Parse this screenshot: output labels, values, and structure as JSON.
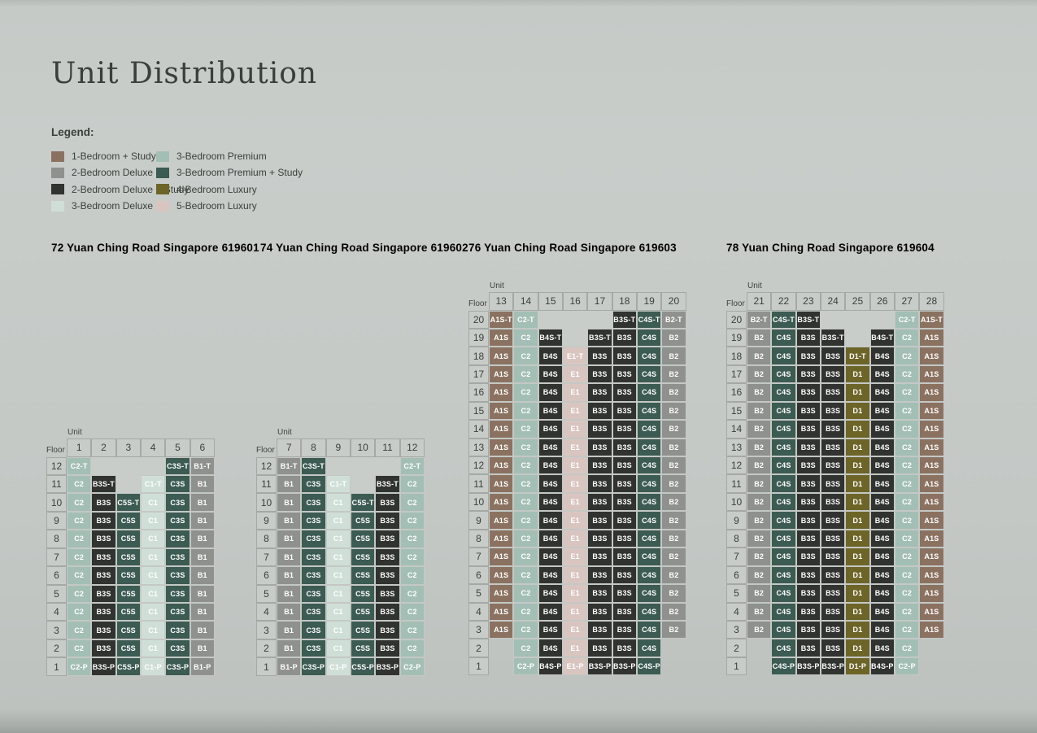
{
  "page": {
    "title": "Unit Distribution"
  },
  "chart_data": {
    "type": "table",
    "title": "Unit Distribution",
    "legend": {
      "title": "Legend:",
      "items": [
        {
          "label": "1-Bedroom + Study",
          "color": "#8b7260"
        },
        {
          "label": "2-Bedroom Deluxe",
          "color": "#8f918e"
        },
        {
          "label": "2-Bedroom Deluxe + Study",
          "color": "#313330"
        },
        {
          "label": "3-Bedroom Deluxe",
          "color": "#cfdfd8"
        },
        {
          "label": "3-Bedroom Premium",
          "color": "#a3bfb5"
        },
        {
          "label": "3-Bedroom Premium + Study",
          "color": "#3c5b52"
        },
        {
          "label": "4-Bedroom Luxury",
          "color": "#6d6428"
        },
        {
          "label": "5-Bedroom Luxury",
          "color": "#d9c5c0"
        }
      ]
    },
    "axis": {
      "unit": "Unit",
      "floor": "Floor"
    },
    "unit_colors": {
      "A1S": "#8b7260",
      "B1": "#8f918e",
      "B2": "#8f918e",
      "B3S": "#313330",
      "B4S": "#313330",
      "C1": "#cfdfd8",
      "C2": "#a3bfb5",
      "C3S": "#3c5b52",
      "C4S": "#3c5b52",
      "C5S": "#3c5b52",
      "D1": "#6d6428",
      "E1": "#d9c5c0"
    },
    "towers": [
      {
        "title": "72 Yuan Ching Road Singapore 619601",
        "units": [
          "1",
          "2",
          "3",
          "4",
          "5",
          "6"
        ],
        "floors": [
          "12",
          "11",
          "10",
          "9",
          "8",
          "7",
          "6",
          "5",
          "4",
          "3",
          "2",
          "1"
        ],
        "rows": [
          [
            "C2-T",
            "",
            "",
            "",
            "C3S-T",
            "B1-T"
          ],
          [
            "C2",
            "B3S-T",
            "",
            "C1-T",
            "C3S",
            "B1"
          ],
          [
            "C2",
            "B3S",
            "C5S-T",
            "C1",
            "C3S",
            "B1"
          ],
          [
            "C2",
            "B3S",
            "C5S",
            "C1",
            "C3S",
            "B1"
          ],
          [
            "C2",
            "B3S",
            "C5S",
            "C1",
            "C3S",
            "B1"
          ],
          [
            "C2",
            "B3S",
            "C5S",
            "C1",
            "C3S",
            "B1"
          ],
          [
            "C2",
            "B3S",
            "C5S",
            "C1",
            "C3S",
            "B1"
          ],
          [
            "C2",
            "B3S",
            "C5S",
            "C1",
            "C3S",
            "B1"
          ],
          [
            "C2",
            "B3S",
            "C5S",
            "C1",
            "C3S",
            "B1"
          ],
          [
            "C2",
            "B3S",
            "C5S",
            "C1",
            "C3S",
            "B1"
          ],
          [
            "C2",
            "B3S",
            "C5S",
            "C1",
            "C3S",
            "B1"
          ],
          [
            "C2-P",
            "B3S-P",
            "C5S-P",
            "C1-P",
            "C3S-P",
            "B1-P"
          ]
        ]
      },
      {
        "title": "74 Yuan Ching Road Singapore 619602",
        "units": [
          "7",
          "8",
          "9",
          "10",
          "11",
          "12"
        ],
        "floors": [
          "12",
          "11",
          "10",
          "9",
          "8",
          "7",
          "6",
          "5",
          "4",
          "3",
          "2",
          "1"
        ],
        "rows": [
          [
            "B1-T",
            "C3S-T",
            "",
            "",
            "",
            "C2-T"
          ],
          [
            "B1",
            "C3S",
            "C1-T",
            "",
            "B3S-T",
            "C2"
          ],
          [
            "B1",
            "C3S",
            "C1",
            "C5S-T",
            "B3S",
            "C2"
          ],
          [
            "B1",
            "C3S",
            "C1",
            "C5S",
            "B3S",
            "C2"
          ],
          [
            "B1",
            "C3S",
            "C1",
            "C5S",
            "B3S",
            "C2"
          ],
          [
            "B1",
            "C3S",
            "C1",
            "C5S",
            "B3S",
            "C2"
          ],
          [
            "B1",
            "C3S",
            "C1",
            "C5S",
            "B3S",
            "C2"
          ],
          [
            "B1",
            "C3S",
            "C1",
            "C5S",
            "B3S",
            "C2"
          ],
          [
            "B1",
            "C3S",
            "C1",
            "C5S",
            "B3S",
            "C2"
          ],
          [
            "B1",
            "C3S",
            "C1",
            "C5S",
            "B3S",
            "C2"
          ],
          [
            "B1",
            "C3S",
            "C1",
            "C5S",
            "B3S",
            "C2"
          ],
          [
            "B1-P",
            "C3S-P",
            "C1-P",
            "C5S-P",
            "B3S-P",
            "C2-P"
          ]
        ]
      },
      {
        "title": "76 Yuan Ching Road Singapore 619603",
        "units": [
          "13",
          "14",
          "15",
          "16",
          "17",
          "18",
          "19",
          "20"
        ],
        "floors": [
          "20",
          "19",
          "18",
          "17",
          "16",
          "15",
          "14",
          "13",
          "12",
          "11",
          "10",
          "9",
          "8",
          "7",
          "6",
          "5",
          "4",
          "3",
          "2",
          "1"
        ],
        "rows": [
          [
            "A1S-T",
            "C2-T",
            "",
            "",
            "",
            "B3S-T",
            "C4S-T",
            "B2-T"
          ],
          [
            "A1S",
            "C2",
            "B4S-T",
            "",
            "B3S-T",
            "B3S",
            "C4S",
            "B2"
          ],
          [
            "A1S",
            "C2",
            "B4S",
            "E1-T",
            "B3S",
            "B3S",
            "C4S",
            "B2"
          ],
          [
            "A1S",
            "C2",
            "B4S",
            "E1",
            "B3S",
            "B3S",
            "C4S",
            "B2"
          ],
          [
            "A1S",
            "C2",
            "B4S",
            "E1",
            "B3S",
            "B3S",
            "C4S",
            "B2"
          ],
          [
            "A1S",
            "C2",
            "B4S",
            "E1",
            "B3S",
            "B3S",
            "C4S",
            "B2"
          ],
          [
            "A1S",
            "C2",
            "B4S",
            "E1",
            "B3S",
            "B3S",
            "C4S",
            "B2"
          ],
          [
            "A1S",
            "C2",
            "B4S",
            "E1",
            "B3S",
            "B3S",
            "C4S",
            "B2"
          ],
          [
            "A1S",
            "C2",
            "B4S",
            "E1",
            "B3S",
            "B3S",
            "C4S",
            "B2"
          ],
          [
            "A1S",
            "C2",
            "B4S",
            "E1",
            "B3S",
            "B3S",
            "C4S",
            "B2"
          ],
          [
            "A1S",
            "C2",
            "B4S",
            "E1",
            "B3S",
            "B3S",
            "C4S",
            "B2"
          ],
          [
            "A1S",
            "C2",
            "B4S",
            "E1",
            "B3S",
            "B3S",
            "C4S",
            "B2"
          ],
          [
            "A1S",
            "C2",
            "B4S",
            "E1",
            "B3S",
            "B3S",
            "C4S",
            "B2"
          ],
          [
            "A1S",
            "C2",
            "B4S",
            "E1",
            "B3S",
            "B3S",
            "C4S",
            "B2"
          ],
          [
            "A1S",
            "C2",
            "B4S",
            "E1",
            "B3S",
            "B3S",
            "C4S",
            "B2"
          ],
          [
            "A1S",
            "C2",
            "B4S",
            "E1",
            "B3S",
            "B3S",
            "C4S",
            "B2"
          ],
          [
            "A1S",
            "C2",
            "B4S",
            "E1",
            "B3S",
            "B3S",
            "C4S",
            "B2"
          ],
          [
            "A1S",
            "C2",
            "B4S",
            "E1",
            "B3S",
            "B3S",
            "C4S",
            "B2"
          ],
          [
            null,
            "C2",
            "B4S",
            "E1",
            "B3S",
            "B3S",
            "C4S",
            null
          ],
          [
            null,
            "C2-P",
            "B4S-P",
            "E1-P",
            "B3S-P",
            "B3S-P",
            "C4S-P",
            null
          ]
        ]
      },
      {
        "title": "78 Yuan Ching Road Singapore 619604",
        "units": [
          "21",
          "22",
          "23",
          "24",
          "25",
          "26",
          "27",
          "28"
        ],
        "floors": [
          "20",
          "19",
          "18",
          "17",
          "16",
          "15",
          "14",
          "13",
          "12",
          "11",
          "10",
          "9",
          "8",
          "7",
          "6",
          "5",
          "4",
          "3",
          "2",
          "1"
        ],
        "rows": [
          [
            "B2-T",
            "C4S-T",
            "B3S-T",
            "",
            "",
            "",
            "C2-T",
            "A1S-T"
          ],
          [
            "B2",
            "C4S",
            "B3S",
            "B3S-T",
            "",
            "B4S-T",
            "C2",
            "A1S"
          ],
          [
            "B2",
            "C4S",
            "B3S",
            "B3S",
            "D1-T",
            "B4S",
            "C2",
            "A1S"
          ],
          [
            "B2",
            "C4S",
            "B3S",
            "B3S",
            "D1",
            "B4S",
            "C2",
            "A1S"
          ],
          [
            "B2",
            "C4S",
            "B3S",
            "B3S",
            "D1",
            "B4S",
            "C2",
            "A1S"
          ],
          [
            "B2",
            "C4S",
            "B3S",
            "B3S",
            "D1",
            "B4S",
            "C2",
            "A1S"
          ],
          [
            "B2",
            "C4S",
            "B3S",
            "B3S",
            "D1",
            "B4S",
            "C2",
            "A1S"
          ],
          [
            "B2",
            "C4S",
            "B3S",
            "B3S",
            "D1",
            "B4S",
            "C2",
            "A1S"
          ],
          [
            "B2",
            "C4S",
            "B3S",
            "B3S",
            "D1",
            "B4S",
            "C2",
            "A1S"
          ],
          [
            "B2",
            "C4S",
            "B3S",
            "B3S",
            "D1",
            "B4S",
            "C2",
            "A1S"
          ],
          [
            "B2",
            "C4S",
            "B3S",
            "B3S",
            "D1",
            "B4S",
            "C2",
            "A1S"
          ],
          [
            "B2",
            "C4S",
            "B3S",
            "B3S",
            "D1",
            "B4S",
            "C2",
            "A1S"
          ],
          [
            "B2",
            "C4S",
            "B3S",
            "B3S",
            "D1",
            "B4S",
            "C2",
            "A1S"
          ],
          [
            "B2",
            "C4S",
            "B3S",
            "B3S",
            "D1",
            "B4S",
            "C2",
            "A1S"
          ],
          [
            "B2",
            "C4S",
            "B3S",
            "B3S",
            "D1",
            "B4S",
            "C2",
            "A1S"
          ],
          [
            "B2",
            "C4S",
            "B3S",
            "B3S",
            "D1",
            "B4S",
            "C2",
            "A1S"
          ],
          [
            "B2",
            "C4S",
            "B3S",
            "B3S",
            "D1",
            "B4S",
            "C2",
            "A1S"
          ],
          [
            "B2",
            "C4S",
            "B3S",
            "B3S",
            "D1",
            "B4S",
            "C2",
            "A1S"
          ],
          [
            null,
            "C4S",
            "B3S",
            "B3S",
            "D1",
            "B4S",
            "C2",
            null
          ],
          [
            null,
            "C4S-P",
            "B3S-P",
            "B3S-P",
            "D1-P",
            "B4S-P",
            "C2-P",
            null
          ]
        ]
      }
    ]
  }
}
